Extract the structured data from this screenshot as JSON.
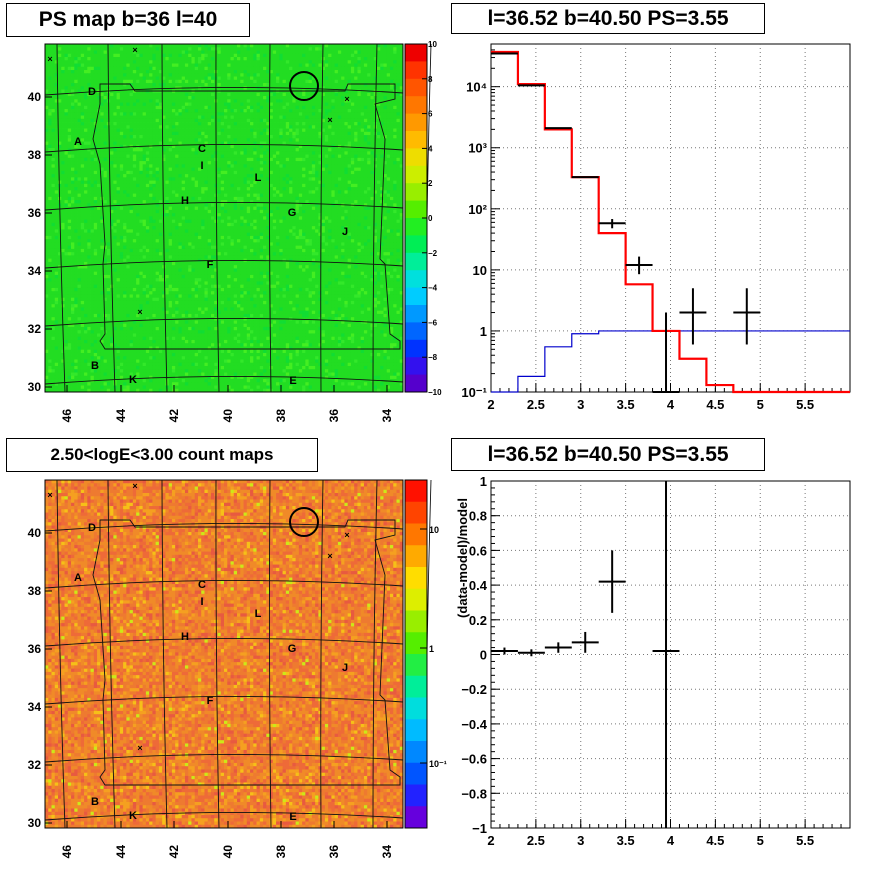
{
  "titles": {
    "ps_map": "PS map b=36 l=40",
    "spectrum": "l=36.52 b=40.50 PS=3.55",
    "count_map": "2.50<logE<3.00 count maps",
    "residual": "l=36.52 b=40.50 PS=3.55"
  },
  "colors": {
    "data_line": "#000000",
    "model_line": "#ff0000",
    "background_line": "#0000cc",
    "ps_map_base": "#22dd22",
    "count_map_base": "#ee7a30"
  },
  "chart_data": [
    {
      "type": "heatmap",
      "name": "ps_map",
      "title": "PS map b=36 l=40",
      "x_ticks": [
        "46",
        "44",
        "42",
        "40",
        "38",
        "36",
        "34"
      ],
      "y_ticks": [
        "30",
        "32",
        "34",
        "36",
        "38",
        "40"
      ],
      "colorbar_ticks": [
        "10",
        "8",
        "6",
        "4",
        "2",
        "0",
        "−2",
        "−4",
        "−6",
        "−8",
        "−10"
      ],
      "colorbar_range": [
        -10,
        10
      ],
      "region_labels": [
        "A",
        "B",
        "C",
        "D",
        "E",
        "F",
        "G",
        "H",
        "I",
        "J",
        "K",
        "L"
      ]
    },
    {
      "type": "line",
      "name": "spectrum",
      "title": "l=36.52 b=40.50 PS=3.55",
      "y_scale": "log",
      "xlim": [
        2,
        6
      ],
      "ylim": [
        0.1,
        50000
      ],
      "x_ticks": [
        "2",
        "2.5",
        "3",
        "3.5",
        "4",
        "4.5",
        "5",
        "5.5"
      ],
      "y_ticks": [
        "10⁻¹",
        "1",
        "10",
        "10²",
        "10³",
        "10⁴"
      ],
      "grid": true,
      "data_points": [
        {
          "x": 2.15,
          "y": 35000,
          "xerr": 0.15
        },
        {
          "x": 2.45,
          "y": 10500,
          "xerr": 0.15
        },
        {
          "x": 2.75,
          "y": 2100,
          "xerr": 0.15
        },
        {
          "x": 3.05,
          "y": 330,
          "xerr": 0.15
        },
        {
          "x": 3.35,
          "y": 58,
          "xerr": 0.15,
          "ylo": 48,
          "yhi": 68
        },
        {
          "x": 3.65,
          "y": 12,
          "xerr": 0.15,
          "ylo": 8.5,
          "yhi": 16.5
        },
        {
          "x": 3.95,
          "y": 0.1,
          "xerr": 0.15,
          "ylo": 0.1,
          "yhi": 2
        },
        {
          "x": 4.25,
          "y": 2,
          "xerr": 0.15,
          "ylo": 0.6,
          "yhi": 5
        },
        {
          "x": 4.85,
          "y": 2,
          "xerr": 0.15,
          "ylo": 0.6,
          "yhi": 5
        }
      ],
      "model_steps": {
        "edges": [
          2.0,
          2.3,
          2.6,
          2.9,
          3.2,
          3.5,
          3.8,
          4.1,
          4.4,
          4.7,
          5.0,
          6.0
        ],
        "values": [
          37000,
          11000,
          2000,
          330,
          40,
          5.8,
          1.0,
          0.35,
          0.13,
          0.1,
          0.1
        ]
      },
      "background_steps": {
        "edges": [
          2.0,
          2.3,
          2.6,
          2.9,
          3.2,
          3.5,
          3.8,
          4.1,
          4.4,
          4.7,
          5.0,
          6.0
        ],
        "values": [
          0.1,
          0.18,
          0.55,
          0.9,
          1.0,
          1.0,
          1.0,
          1.0,
          1.0,
          1.0,
          1.0
        ]
      }
    },
    {
      "type": "heatmap",
      "name": "count_map",
      "title": "2.50<logE<3.00 count maps",
      "x_ticks": [
        "46",
        "44",
        "42",
        "40",
        "38",
        "36",
        "34"
      ],
      "y_ticks": [
        "30",
        "32",
        "34",
        "36",
        "38",
        "40"
      ],
      "colorbar_ticks": [
        "10",
        "1",
        "10⁻¹"
      ],
      "colorbar_scale": "log",
      "region_labels": [
        "A",
        "B",
        "C",
        "D",
        "E",
        "F",
        "G",
        "H",
        "I",
        "J",
        "K",
        "L"
      ]
    },
    {
      "type": "scatter",
      "name": "residual",
      "title": "l=36.52 b=40.50 PS=3.55",
      "ylabel": "(data-model)/model",
      "xlim": [
        2,
        6
      ],
      "ylim": [
        -1,
        1
      ],
      "x_ticks": [
        "2",
        "2.5",
        "3",
        "3.5",
        "4",
        "4.5",
        "5",
        "5.5"
      ],
      "y_ticks": [
        "1",
        "0.8",
        "0.6",
        "0.4",
        "0.2",
        "0",
        "−0.2",
        "−0.4",
        "−0.6",
        "−0.8",
        "−1"
      ],
      "grid": true,
      "points": [
        {
          "x": 2.15,
          "y": 0.02,
          "xerr": 0.15,
          "yerr": 0.02
        },
        {
          "x": 2.45,
          "y": 0.01,
          "xerr": 0.15,
          "yerr": 0.02
        },
        {
          "x": 2.75,
          "y": 0.04,
          "xerr": 0.15,
          "yerr": 0.03
        },
        {
          "x": 3.05,
          "y": 0.07,
          "xerr": 0.15,
          "yerr": 0.06
        },
        {
          "x": 3.35,
          "y": 0.42,
          "xerr": 0.15,
          "yerr": 0.18
        },
        {
          "x": 3.95,
          "y": 0.02,
          "xerr": 0.15,
          "yerr": 1.2
        }
      ]
    }
  ]
}
